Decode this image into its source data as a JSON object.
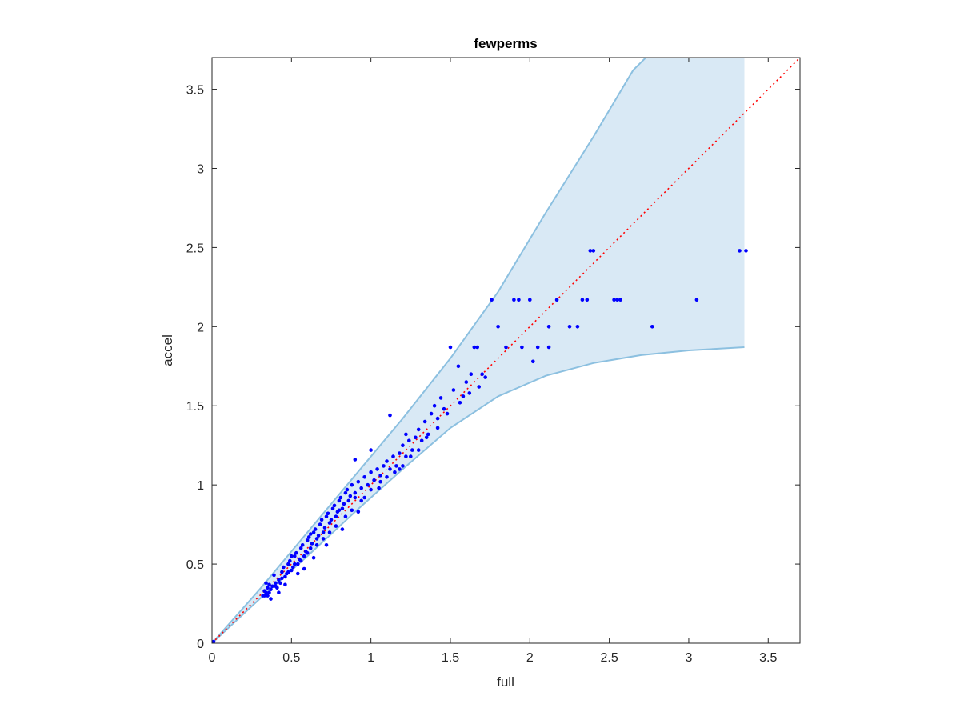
{
  "chart_data": {
    "type": "scatter",
    "title": "fewperms",
    "xlabel": "full",
    "ylabel": "accel",
    "xlim": [
      0,
      3.7
    ],
    "ylim": [
      0,
      3.7
    ],
    "xticks": [
      "0",
      "0.5",
      "1",
      "1.5",
      "2",
      "2.5",
      "3",
      "3.5"
    ],
    "yticks": [
      "0",
      "0.5",
      "1",
      "1.5",
      "2",
      "2.5",
      "3",
      "3.5"
    ],
    "grid": false,
    "colors": {
      "points": "#0000ff",
      "band_fill": "#d9e9f5",
      "band_edge": "#8cc0e0",
      "reference_line": "#ff0000"
    },
    "reference_line": {
      "style": "dotted",
      "from": [
        0,
        0
      ],
      "to": [
        3.7,
        3.7
      ]
    },
    "band": {
      "upper": [
        [
          0,
          0
        ],
        [
          0.3,
          0.34
        ],
        [
          0.6,
          0.7
        ],
        [
          0.9,
          1.06
        ],
        [
          1.2,
          1.42
        ],
        [
          1.5,
          1.8
        ],
        [
          1.8,
          2.22
        ],
        [
          2.1,
          2.72
        ],
        [
          2.4,
          3.2
        ],
        [
          2.65,
          3.62
        ],
        [
          2.73,
          3.7
        ],
        [
          3.35,
          3.7
        ]
      ],
      "lower": [
        [
          0,
          0
        ],
        [
          0.3,
          0.28
        ],
        [
          0.6,
          0.55
        ],
        [
          0.9,
          0.83
        ],
        [
          1.2,
          1.1
        ],
        [
          1.5,
          1.36
        ],
        [
          1.8,
          1.56
        ],
        [
          2.1,
          1.69
        ],
        [
          2.4,
          1.77
        ],
        [
          2.7,
          1.82
        ],
        [
          3.0,
          1.85
        ],
        [
          3.35,
          1.87
        ]
      ]
    },
    "points": [
      [
        0,
        0
      ],
      [
        0.01,
        0.01
      ],
      [
        0.33,
        0.3
      ],
      [
        0.34,
        0.32
      ],
      [
        0.35,
        0.35
      ],
      [
        0.36,
        0.37
      ],
      [
        0.33,
        0.33
      ],
      [
        0.35,
        0.3
      ],
      [
        0.37,
        0.34
      ],
      [
        0.34,
        0.38
      ],
      [
        0.38,
        0.36
      ],
      [
        0.4,
        0.38
      ],
      [
        0.42,
        0.4
      ],
      [
        0.39,
        0.43
      ],
      [
        0.41,
        0.35
      ],
      [
        0.44,
        0.45
      ],
      [
        0.43,
        0.38
      ],
      [
        0.46,
        0.42
      ],
      [
        0.45,
        0.48
      ],
      [
        0.48,
        0.5
      ],
      [
        0.47,
        0.44
      ],
      [
        0.5,
        0.46
      ],
      [
        0.49,
        0.52
      ],
      [
        0.52,
        0.55
      ],
      [
        0.51,
        0.48
      ],
      [
        0.54,
        0.5
      ],
      [
        0.53,
        0.57
      ],
      [
        0.56,
        0.6
      ],
      [
        0.55,
        0.53
      ],
      [
        0.58,
        0.55
      ],
      [
        0.57,
        0.62
      ],
      [
        0.6,
        0.65
      ],
      [
        0.59,
        0.58
      ],
      [
        0.62,
        0.6
      ],
      [
        0.61,
        0.67
      ],
      [
        0.64,
        0.7
      ],
      [
        0.63,
        0.63
      ],
      [
        0.66,
        0.66
      ],
      [
        0.65,
        0.72
      ],
      [
        0.68,
        0.75
      ],
      [
        0.67,
        0.68
      ],
      [
        0.7,
        0.7
      ],
      [
        0.69,
        0.78
      ],
      [
        0.72,
        0.8
      ],
      [
        0.71,
        0.73
      ],
      [
        0.74,
        0.76
      ],
      [
        0.73,
        0.82
      ],
      [
        0.76,
        0.85
      ],
      [
        0.75,
        0.78
      ],
      [
        0.78,
        0.8
      ],
      [
        0.77,
        0.87
      ],
      [
        0.8,
        0.9
      ],
      [
        0.79,
        0.83
      ],
      [
        0.82,
        0.85
      ],
      [
        0.81,
        0.92
      ],
      [
        0.84,
        0.95
      ],
      [
        0.83,
        0.88
      ],
      [
        0.86,
        0.9
      ],
      [
        0.85,
        0.97
      ],
      [
        0.88,
        1.0
      ],
      [
        0.87,
        0.93
      ],
      [
        0.9,
        0.95
      ],
      [
        0.92,
        1.02
      ],
      [
        0.94,
        0.98
      ],
      [
        0.96,
        1.05
      ],
      [
        0.98,
        1.0
      ],
      [
        1.0,
        1.08
      ],
      [
        1.02,
        1.03
      ],
      [
        1.04,
        1.1
      ],
      [
        1.06,
        1.06
      ],
      [
        1.08,
        1.12
      ],
      [
        1.1,
        1.15
      ],
      [
        1.12,
        1.1
      ],
      [
        1.14,
        1.18
      ],
      [
        1.16,
        1.12
      ],
      [
        1.18,
        1.2
      ],
      [
        1.2,
        1.25
      ],
      [
        1.22,
        1.18
      ],
      [
        1.24,
        1.28
      ],
      [
        1.26,
        1.22
      ],
      [
        1.28,
        1.3
      ],
      [
        1.3,
        1.35
      ],
      [
        1.32,
        1.28
      ],
      [
        1.34,
        1.4
      ],
      [
        1.36,
        1.32
      ],
      [
        1.38,
        1.45
      ],
      [
        1.4,
        1.5
      ],
      [
        1.42,
        1.42
      ],
      [
        1.44,
        1.55
      ],
      [
        1.46,
        1.48
      ],
      [
        1.5,
        1.87
      ],
      [
        1.52,
        1.6
      ],
      [
        1.55,
        1.75
      ],
      [
        1.58,
        1.56
      ],
      [
        1.6,
        1.65
      ],
      [
        1.63,
        1.7
      ],
      [
        1.65,
        1.87
      ],
      [
        1.67,
        1.87
      ],
      [
        1.7,
        1.7
      ],
      [
        1.72,
        1.68
      ],
      [
        1.76,
        2.17
      ],
      [
        1.8,
        2.0
      ],
      [
        1.85,
        1.87
      ],
      [
        1.9,
        2.17
      ],
      [
        1.93,
        2.17
      ],
      [
        1.95,
        1.87
      ],
      [
        2.0,
        2.17
      ],
      [
        2.02,
        1.78
      ],
      [
        2.05,
        1.87
      ],
      [
        2.12,
        1.87
      ],
      [
        2.12,
        2.0
      ],
      [
        2.17,
        2.17
      ],
      [
        2.25,
        2.0
      ],
      [
        2.3,
        2.0
      ],
      [
        2.33,
        2.17
      ],
      [
        2.36,
        2.17
      ],
      [
        2.38,
        2.48
      ],
      [
        2.4,
        2.48
      ],
      [
        2.53,
        2.17
      ],
      [
        2.55,
        2.17
      ],
      [
        2.57,
        2.17
      ],
      [
        2.77,
        2.0
      ],
      [
        3.05,
        2.17
      ],
      [
        3.32,
        2.48
      ],
      [
        3.36,
        2.48
      ],
      [
        0.32,
        0.3
      ],
      [
        0.36,
        0.32
      ],
      [
        0.4,
        0.36
      ],
      [
        0.44,
        0.41
      ],
      [
        0.48,
        0.45
      ],
      [
        0.5,
        0.55
      ],
      [
        0.52,
        0.5
      ],
      [
        0.56,
        0.52
      ],
      [
        0.6,
        0.57
      ],
      [
        0.62,
        0.69
      ],
      [
        0.66,
        0.62
      ],
      [
        0.7,
        0.66
      ],
      [
        0.74,
        0.7
      ],
      [
        0.78,
        0.74
      ],
      [
        0.8,
        0.84
      ],
      [
        0.84,
        0.8
      ],
      [
        0.88,
        0.84
      ],
      [
        0.9,
        0.92
      ],
      [
        0.94,
        0.9
      ],
      [
        1.0,
        0.97
      ],
      [
        1.05,
        0.98
      ],
      [
        1.1,
        1.05
      ],
      [
        1.15,
        1.08
      ],
      [
        1.2,
        1.12
      ],
      [
        1.25,
        1.18
      ],
      [
        1.3,
        1.22
      ],
      [
        1.35,
        1.3
      ],
      [
        1.12,
        1.44
      ],
      [
        1.22,
        1.32
      ],
      [
        1.0,
        1.22
      ],
      [
        0.9,
        1.16
      ],
      [
        1.42,
        1.36
      ],
      [
        1.48,
        1.45
      ],
      [
        1.56,
        1.52
      ],
      [
        1.62,
        1.58
      ],
      [
        1.68,
        1.62
      ],
      [
        0.37,
        0.28
      ],
      [
        0.42,
        0.32
      ],
      [
        0.46,
        0.37
      ],
      [
        0.54,
        0.44
      ],
      [
        0.58,
        0.47
      ],
      [
        0.64,
        0.54
      ],
      [
        0.72,
        0.62
      ],
      [
        0.82,
        0.72
      ],
      [
        0.92,
        0.83
      ],
      [
        0.96,
        0.92
      ],
      [
        1.06,
        1.02
      ],
      [
        1.18,
        1.1
      ]
    ]
  }
}
